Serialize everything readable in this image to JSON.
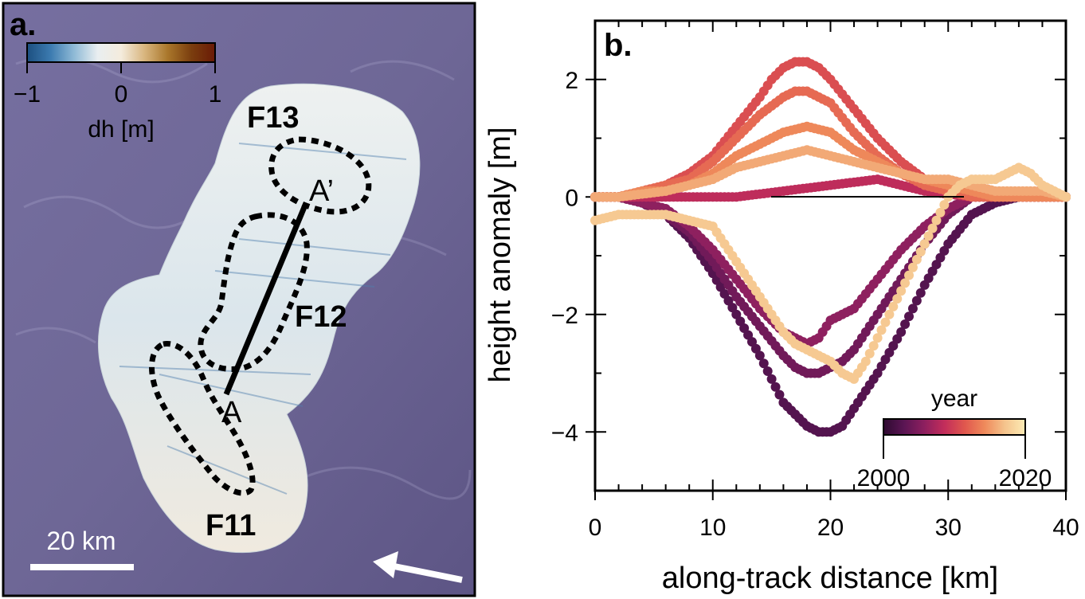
{
  "colors": {
    "map_background": "#6e6796",
    "dh_colormap": [
      "#1c4f80",
      "#3c7bb0",
      "#8fbad6",
      "#e9eef0",
      "#f4ecdd",
      "#d8b57e",
      "#a9762a",
      "#7a3d0e",
      "#6a1a06"
    ],
    "year_colormap": [
      "#2d0a30",
      "#5a1553",
      "#8c1f5f",
      "#c22d5b",
      "#e0574e",
      "#ef8a5b",
      "#f5c48d",
      "#fcebb5"
    ]
  },
  "panel_a": {
    "label": "a.",
    "colorbar": {
      "title": "dh [m]",
      "ticks": [
        "−1",
        "0",
        "1"
      ],
      "range": [
        -1,
        1
      ]
    },
    "lake_labels": [
      "F13",
      "F12",
      "F11"
    ],
    "point_labels": [
      "A’",
      "A"
    ],
    "scalebar_label": "20 km",
    "arrow_icon": "flow-direction-arrow-icon"
  },
  "chart_data": {
    "type": "scatter",
    "panel_label": "b.",
    "xlabel": "along-track distance [km]",
    "ylabel": "height anomaly [m]",
    "xlim": [
      0,
      40
    ],
    "ylim": [
      -5,
      3
    ],
    "xticks": [
      "0",
      "10",
      "20",
      "30",
      "40"
    ],
    "yticks": [
      "2",
      "0",
      "−2",
      "−4"
    ],
    "colorbar": {
      "title": "year",
      "ticks": [
        "2000",
        "2020"
      ],
      "range": [
        2000,
        2024
      ]
    },
    "series": [
      {
        "year": 2003,
        "x": [
          0,
          2,
          4,
          6,
          8,
          10,
          12,
          14,
          15,
          16,
          17,
          18,
          19,
          20,
          21,
          22,
          24,
          26,
          28,
          30,
          32,
          34,
          36,
          38,
          40
        ],
        "y": [
          0,
          0,
          -0.1,
          -0.3,
          -0.7,
          -1.3,
          -2.0,
          -2.7,
          -3.1,
          -3.5,
          -3.7,
          -3.9,
          -4.0,
          -4.0,
          -3.9,
          -3.6,
          -3.0,
          -2.3,
          -1.5,
          -0.8,
          -0.3,
          -0.1,
          0,
          0,
          0
        ]
      },
      {
        "year": 2005,
        "x": [
          0,
          2,
          4,
          6,
          8,
          10,
          12,
          14,
          16,
          17,
          18,
          19,
          20,
          21,
          22,
          24,
          26,
          28,
          30,
          32,
          34,
          36,
          38,
          40
        ],
        "y": [
          0,
          0,
          -0.1,
          -0.3,
          -0.6,
          -1.1,
          -1.7,
          -2.2,
          -2.7,
          -2.9,
          -3.0,
          -3.0,
          -2.9,
          -2.8,
          -2.6,
          -2.0,
          -1.4,
          -0.8,
          -0.3,
          0,
          0,
          0,
          0,
          0
        ]
      },
      {
        "year": 2007,
        "x": [
          0,
          2,
          4,
          6,
          8,
          10,
          12,
          14,
          16,
          18,
          19,
          20,
          21,
          22,
          24,
          26,
          28,
          30,
          32,
          34,
          36,
          38,
          40
        ],
        "y": [
          0,
          0,
          -0.1,
          -0.2,
          -0.5,
          -0.9,
          -1.4,
          -1.9,
          -2.3,
          -2.5,
          -2.4,
          -2.1,
          -2.0,
          -1.9,
          -1.4,
          -0.9,
          -0.5,
          -0.2,
          0,
          0,
          0,
          0,
          0
        ]
      },
      {
        "year": 2010,
        "x": [
          0,
          2,
          4,
          6,
          8,
          10,
          12,
          14,
          16,
          18,
          20,
          22,
          24,
          26,
          28,
          30,
          32,
          34,
          36,
          38,
          40
        ],
        "y": [
          0,
          0,
          0,
          0,
          0,
          0,
          0,
          0.05,
          0.1,
          0.15,
          0.2,
          0.25,
          0.3,
          0.2,
          0.1,
          0.05,
          0,
          0,
          0,
          0,
          0
        ]
      },
      {
        "year": 2013,
        "x": [
          0,
          2,
          4,
          6,
          8,
          10,
          12,
          14,
          15,
          16,
          17,
          18,
          19,
          20,
          22,
          24,
          26,
          28,
          30,
          32,
          34,
          36,
          38,
          40
        ],
        "y": [
          0,
          0,
          0.1,
          0.2,
          0.4,
          0.7,
          1.2,
          1.7,
          2.0,
          2.2,
          2.3,
          2.3,
          2.2,
          2.0,
          1.5,
          1.0,
          0.6,
          0.3,
          0.2,
          0.1,
          0,
          0,
          0,
          0
        ]
      },
      {
        "year": 2015,
        "x": [
          0,
          2,
          4,
          6,
          8,
          10,
          12,
          14,
          16,
          17,
          18,
          19,
          20,
          22,
          24,
          26,
          28,
          30,
          32,
          34,
          36,
          38,
          40
        ],
        "y": [
          0,
          0,
          0.1,
          0.2,
          0.3,
          0.6,
          1.0,
          1.4,
          1.7,
          1.8,
          1.8,
          1.7,
          1.6,
          1.1,
          0.7,
          0.4,
          0.2,
          0.1,
          0,
          0,
          0,
          0,
          0
        ]
      },
      {
        "year": 2017,
        "x": [
          0,
          2,
          4,
          6,
          8,
          10,
          12,
          14,
          16,
          18,
          20,
          22,
          24,
          26,
          28,
          30,
          32,
          34,
          36,
          38,
          40
        ],
        "y": [
          0,
          0,
          0.1,
          0.1,
          0.2,
          0.4,
          0.7,
          0.9,
          1.1,
          1.2,
          1.1,
          0.8,
          0.6,
          0.4,
          0.3,
          0.2,
          0.1,
          0,
          0,
          0,
          0
        ]
      },
      {
        "year": 2019,
        "x": [
          0,
          2,
          4,
          6,
          8,
          10,
          12,
          14,
          16,
          18,
          20,
          22,
          24,
          26,
          28,
          30,
          32,
          34,
          36,
          38,
          40
        ],
        "y": [
          0,
          0,
          0.05,
          0.1,
          0.2,
          0.3,
          0.5,
          0.6,
          0.7,
          0.8,
          0.7,
          0.6,
          0.5,
          0.4,
          0.3,
          0.3,
          0.2,
          0.1,
          0.1,
          0.1,
          0
        ]
      },
      {
        "year": 2021,
        "x": [
          0,
          2,
          4,
          6,
          8,
          10,
          11,
          12,
          13,
          14,
          15,
          16,
          17,
          18,
          19,
          20,
          21,
          22,
          23,
          24,
          25,
          26,
          27,
          28,
          29,
          30,
          31,
          32,
          33,
          34,
          35,
          36,
          37,
          38,
          39,
          40
        ],
        "y": [
          -0.4,
          -0.3,
          -0.3,
          -0.3,
          -0.4,
          -0.5,
          -0.8,
          -1.1,
          -1.4,
          -1.7,
          -2.0,
          -2.3,
          -2.5,
          -2.6,
          -2.7,
          -2.8,
          -3.0,
          -3.1,
          -2.8,
          -2.4,
          -2.0,
          -1.6,
          -1.2,
          -0.8,
          -0.4,
          0,
          0.2,
          0.3,
          0.3,
          0.3,
          0.4,
          0.5,
          0.4,
          0.2,
          0.1,
          0
        ]
      }
    ]
  }
}
